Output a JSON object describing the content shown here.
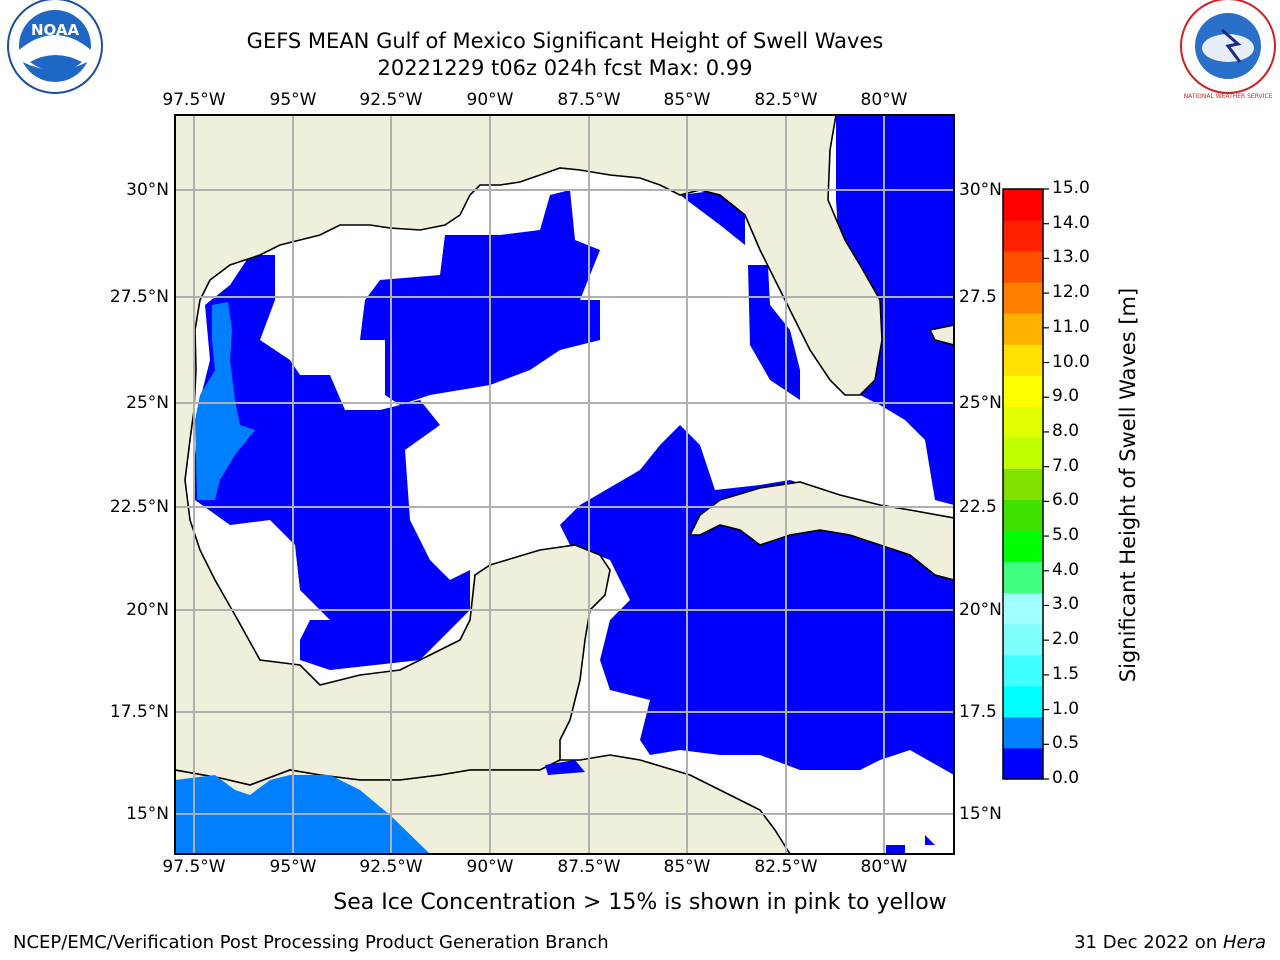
{
  "header": {
    "title_line1": "GEFS MEAN Gulf of Mexico Significant Height of Swell Waves",
    "title_line2": "20221229 t06z 024h fcst   Max: 0.99"
  },
  "logos": {
    "left": "NOAA",
    "right": "NATIONAL WEATHER SERVICE"
  },
  "map": {
    "lon_ticks": [
      "97.5°W",
      "95°W",
      "92.5°W",
      "90°W",
      "87.5°W",
      "85°W",
      "82.5°W",
      "80°W"
    ],
    "lat_ticks_left": [
      "30°N",
      "27.5°N",
      "25°N",
      "22.5°N",
      "20°N",
      "17.5°N",
      "15°N"
    ],
    "lat_ticks_right": [
      "30°N",
      "27.5",
      "25°N",
      "22.5",
      "20°N",
      "17.5",
      "15°N"
    ],
    "land_color": "#efefdc",
    "grid_color": "#b0b0b0"
  },
  "colorbar": {
    "label": "Significant Height of Swell Waves [m]",
    "ticks": [
      "15.0",
      "14.0",
      "13.0",
      "12.0",
      "11.0",
      "10.0",
      "9.0",
      "8.0",
      "7.0",
      "6.0",
      "5.0",
      "4.0",
      "3.0",
      "2.0",
      "1.5",
      "1.0",
      "0.5",
      "0.0"
    ],
    "colors": [
      "#0000ff",
      "#0080ff",
      "#00ffff",
      "#40ffff",
      "#80ffff",
      "#a0ffff",
      "#40ff80",
      "#00ff00",
      "#40e000",
      "#80e000",
      "#c0ff00",
      "#e0ff00",
      "#ffff00",
      "#ffe000",
      "#ffb000",
      "#ff8000",
      "#ff5000",
      "#ff2000",
      "#ff0000"
    ]
  },
  "notes": {
    "sea_ice": "Sea Ice Concentration > 15% is shown in pink to yellow"
  },
  "footer": {
    "left": "NCEP/EMC/Verification Post Processing Product Generation Branch",
    "date": "31 Dec 2022",
    "on": " on ",
    "machine": "Hera"
  }
}
